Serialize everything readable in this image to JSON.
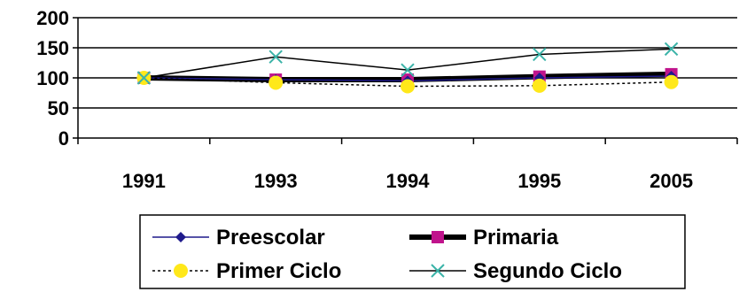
{
  "chart_data": {
    "type": "line",
    "title": "",
    "xlabel": "",
    "ylabel": "",
    "categories": [
      "1991",
      "1993",
      "1994",
      "1995",
      "2005"
    ],
    "ylim": [
      0,
      200
    ],
    "yticks": [
      0,
      50,
      100,
      150,
      200
    ],
    "grid": "horizontal",
    "legend_position": "bottom",
    "series": [
      {
        "name": "Preescolar",
        "values": [
          100,
          97,
          95,
          100,
          103
        ],
        "color": "#1f1a8c",
        "marker": "diamond",
        "line": "solid-thin"
      },
      {
        "name": "Primaria",
        "values": [
          100,
          97,
          97,
          102,
          106
        ],
        "color": "#000000",
        "marker": "square",
        "marker_color": "#c0148c",
        "line": "solid-thick"
      },
      {
        "name": "Primer Ciclo",
        "values": [
          100,
          92,
          86,
          87,
          93
        ],
        "color": "#000000",
        "marker": "circle",
        "marker_color": "#ffe81a",
        "line": "dotted"
      },
      {
        "name": "Segundo Ciclo",
        "values": [
          100,
          135,
          113,
          139,
          148
        ],
        "color": "#000000",
        "marker": "x",
        "marker_color": "#3bb3a8",
        "line": "solid-thin"
      }
    ]
  }
}
